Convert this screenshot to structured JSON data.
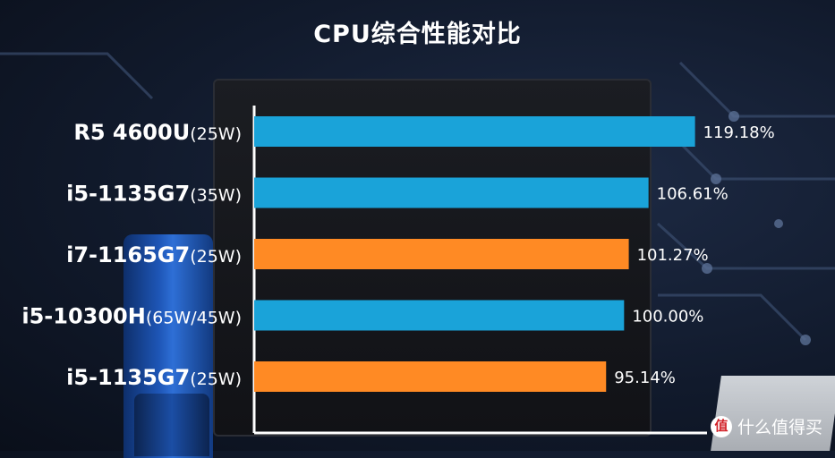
{
  "chart_data": {
    "type": "bar",
    "orientation": "horizontal",
    "title": "CPU综合性能对比",
    "categories": [
      {
        "name": "R5 4600U",
        "suffix": "(25W)"
      },
      {
        "name": "i5-1135G7",
        "suffix": "(35W)"
      },
      {
        "name": "i7-1165G7",
        "suffix": "(25W)"
      },
      {
        "name": "i5-10300H",
        "suffix": "(65W/45W)"
      },
      {
        "name": "i5-1135G7",
        "suffix": "(25W)"
      }
    ],
    "values": [
      119.18,
      106.61,
      101.27,
      100.0,
      95.14
    ],
    "value_labels": [
      "119.18%",
      "106.61%",
      "101.27%",
      "100.00%",
      "95.14%"
    ],
    "bar_colors": [
      "#1aa3d9",
      "#1aa3d9",
      "#ff8a24",
      "#1aa3d9",
      "#ff8a24"
    ],
    "xlim": [
      0,
      120
    ],
    "grid": false,
    "axis_color": "#ffffff"
  },
  "watermark": {
    "icon": "zhi-icon",
    "icon_glyph": "值",
    "text": "什么值得买"
  }
}
